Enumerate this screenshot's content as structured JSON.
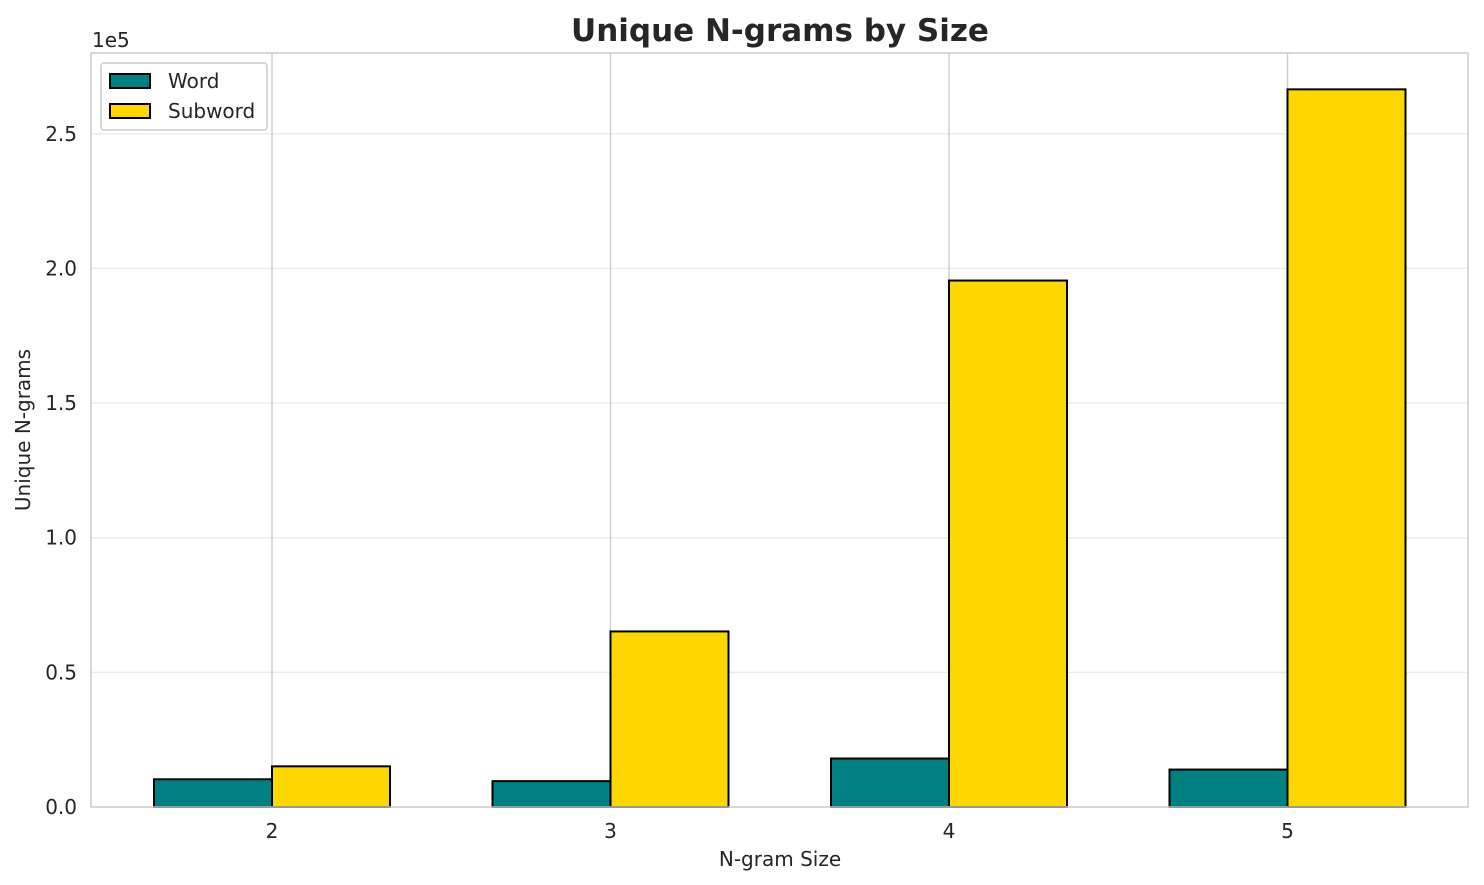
{
  "chart_data": {
    "type": "bar",
    "title": "Unique N-grams by Size",
    "xlabel": "N-gram Size",
    "ylabel": "Unique N-grams",
    "y_offset_label": "1e5",
    "categories": [
      "2",
      "3",
      "4",
      "5"
    ],
    "series": [
      {
        "name": "Word",
        "color": "#008080",
        "values": [
          10300,
          9600,
          18000,
          13900
        ]
      },
      {
        "name": "Subword",
        "color": "#FFD700",
        "values": [
          15100,
          65200,
          195500,
          266500
        ]
      }
    ],
    "ylim": [
      0,
      280000
    ],
    "yticks": [
      0,
      50000,
      100000,
      150000,
      200000,
      250000
    ],
    "ytick_labels": [
      "0.0",
      "0.5",
      "1.0",
      "1.5",
      "2.0",
      "2.5"
    ],
    "grid": true,
    "legend_position": "top-left"
  }
}
